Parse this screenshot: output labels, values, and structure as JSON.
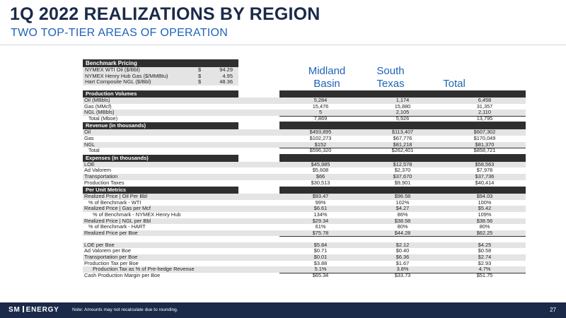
{
  "header": {
    "title": "1Q 2022 REALIZATIONS BY REGION",
    "subtitle": "TWO TOP-TIER AREAS OF OPERATION"
  },
  "benchmark": {
    "title": "Benchmark Pricing",
    "rows": [
      {
        "label": "NYMEX WTI Oil ($/Bbl)",
        "currency": "$",
        "value": "94.29"
      },
      {
        "label": "NYMEX Henry Hub Gas ($/MMBtu)",
        "currency": "$",
        "value": "4.95"
      },
      {
        "label": "Hart Composite NGL ($/Bbl)",
        "currency": "$",
        "value": "48.36"
      }
    ]
  },
  "columns": {
    "midland_line1": "Midland",
    "midland_line2": "Basin",
    "south_line1": "South",
    "south_line2": "Texas",
    "total": "Total"
  },
  "sections": [
    {
      "title": "Production Volumes",
      "rows": [
        {
          "label": "Oil (MBbls)",
          "values": [
            "5,284",
            "1,174",
            "6,458"
          ]
        },
        {
          "label": "Gas (MMcf)",
          "values": [
            "15,476",
            "15,880",
            "31,357"
          ]
        },
        {
          "label": "NGL (MBbls)",
          "values": [
            "5",
            "2,105",
            "2,110"
          ]
        },
        {
          "label": "Total (Mboe)",
          "values": [
            "7,869",
            "5,926",
            "13,795"
          ]
        }
      ]
    },
    {
      "title": "Revenue (in thousands)",
      "rows": [
        {
          "label": "Oil",
          "values": [
            "$493,895",
            "$113,407",
            "$607,302"
          ]
        },
        {
          "label": "Gas",
          "values": [
            "$102,273",
            "$67,776",
            "$170,049"
          ]
        },
        {
          "label": "NGL",
          "values": [
            "$152",
            "$81,218",
            "$81,370"
          ]
        },
        {
          "label": "Total",
          "values": [
            "$596,320",
            "$262,401",
            "$858,721"
          ]
        }
      ]
    },
    {
      "title": "Expenses (in thousands)",
      "rows": [
        {
          "label": "LOE",
          "values": [
            "$45,985",
            "$12,578",
            "$58,563"
          ]
        },
        {
          "label": "Ad Valorem",
          "values": [
            "$5,608",
            "$2,370",
            "$7,978"
          ]
        },
        {
          "label": "Transportation",
          "values": [
            "$66",
            "$37,670",
            "$37,736"
          ]
        },
        {
          "label": "Production Taxes",
          "values": [
            "$30,513",
            "$9,901",
            "$40,414"
          ]
        }
      ]
    },
    {
      "title": "Per Unit Metrics",
      "rows": [
        {
          "label": "Realized Price | Oil Per Bbl",
          "values": [
            "$93.47",
            "$96.58",
            "$94.03"
          ]
        },
        {
          "label": "% of Benchmark - WTI",
          "values": [
            "99%",
            "102%",
            "100%"
          ]
        },
        {
          "label": "Realized Price | Gas per Mcf",
          "values": [
            "$6.61",
            "$4.27",
            "$5.42"
          ]
        },
        {
          "label": "% of Benchmark - NYMEX Henry Hub",
          "values": [
            "134%",
            "86%",
            "109%"
          ]
        },
        {
          "label": "Realized Price | NGL per Bbl",
          "values": [
            "$29.34",
            "$38.58",
            "$38.56"
          ]
        },
        {
          "label": "% of Benchmark - HART",
          "values": [
            "61%",
            "80%",
            "80%"
          ]
        },
        {
          "label": "Realized Price per Boe",
          "values": [
            "$75.78",
            "$44.28",
            "$62.25"
          ]
        },
        {
          "label": "LOE per Boe",
          "values": [
            "$5.84",
            "$2.12",
            "$4.25"
          ]
        },
        {
          "label": "Ad Valorem per Boe",
          "values": [
            "$0.71",
            "$0.40",
            "$0.58"
          ]
        },
        {
          "label": "Transportation per Boe",
          "values": [
            "$0.01",
            "$6.36",
            "$2.74"
          ]
        },
        {
          "label": "Production Tax per Boe",
          "values": [
            "$3.88",
            "$1.67",
            "$2.93"
          ]
        },
        {
          "label": "Production Tax as % of Pre-hedge Revenue",
          "values": [
            "5.1%",
            "3.8%",
            "4.7%"
          ]
        },
        {
          "label": "Cash Production Margin per Boe",
          "values": [
            "$65.34",
            "$33.73",
            "$51.75"
          ]
        }
      ]
    }
  ],
  "footer": {
    "logo_left": "SM",
    "logo_right": "ENERGY",
    "note": "Note: Amounts may not recalculate due to rounding.",
    "page": "27"
  }
}
